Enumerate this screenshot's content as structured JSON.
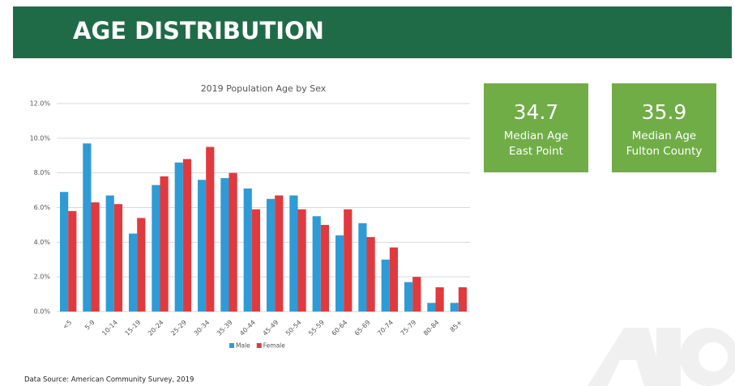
{
  "header": {
    "title": "AGE DISTRIBUTION"
  },
  "chart_data": {
    "type": "bar",
    "title": "2019 Population Age by Sex",
    "categories": [
      "<5",
      "5-9",
      "10-14",
      "15-19",
      "20-24",
      "25-29",
      "30-34",
      "35-39",
      "40-44",
      "45-49",
      "50-54",
      "55-59",
      "60-64",
      "65-69",
      "70-74",
      "75-79",
      "80-84",
      "85+"
    ],
    "series": [
      {
        "name": "Male",
        "color": "#2e9bd6",
        "values": [
          6.9,
          9.7,
          6.7,
          4.5,
          7.3,
          8.6,
          7.6,
          7.7,
          7.1,
          6.5,
          6.7,
          5.5,
          4.4,
          5.1,
          3.0,
          1.7,
          0.5,
          0.5
        ]
      },
      {
        "name": "Female",
        "color": "#e03a3e",
        "values": [
          5.8,
          6.3,
          6.2,
          5.4,
          7.8,
          8.8,
          9.5,
          8.0,
          5.9,
          6.7,
          5.9,
          5.0,
          5.9,
          4.3,
          3.7,
          2.0,
          1.4,
          1.4
        ]
      }
    ],
    "ylim": [
      0,
      12
    ],
    "yticks": [
      {
        "value": 0,
        "label": "0.0%"
      },
      {
        "value": 2,
        "label": "2.0%"
      },
      {
        "value": 4,
        "label": "4.0%"
      },
      {
        "value": 6,
        "label": "6.0%"
      },
      {
        "value": 8,
        "label": "8.0%"
      },
      {
        "value": 10,
        "label": "10.0%"
      },
      {
        "value": 12,
        "label": "12.0%"
      }
    ],
    "grid": true,
    "legend": "bottom"
  },
  "stats": [
    {
      "value": 34.7,
      "label": "Median Age",
      "place": "East Point"
    },
    {
      "value": 35.9,
      "label": "Median Age",
      "place": "Fulton County"
    }
  ],
  "source": "Data Source: American Community Survey, 2019"
}
